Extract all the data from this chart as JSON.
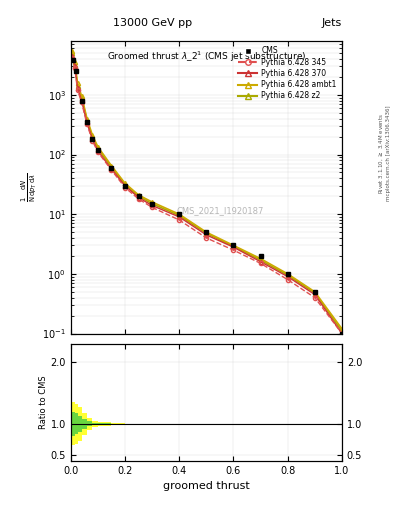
{
  "title": "13000 GeV pp",
  "title_right": "Jets",
  "plot_title": "Groomed thrust $\\lambda\\_2^1$ (CMS jet substructure)",
  "xlabel": "groomed thrust",
  "ylabel": "$\\frac{1}{\\mathrm{d}N}\\frac{\\mathrm{d}N}{\\mathrm{d}p_T\\,\\mathrm{d}\\lambda}$",
  "ylabel_ratio": "Ratio to CMS",
  "watermark": "CMS_2021_I1920187",
  "right_label": "Rivet 3.1.10, $\\geq$ 3.4M events",
  "right_label2": "mcplots.cern.ch [arXiv:1306.3436]",
  "cms_x": [
    0.0,
    0.01,
    0.02,
    0.04,
    0.06,
    0.08,
    0.1,
    0.15,
    0.2,
    0.25,
    0.3,
    0.4,
    0.5,
    0.6,
    0.7,
    0.8,
    0.9,
    1.0
  ],
  "cms_y": [
    0,
    3800,
    2500,
    800,
    350,
    180,
    120,
    60,
    30,
    20,
    15,
    10,
    5,
    3,
    2,
    1,
    0.5,
    0.1
  ],
  "py345_x": [
    0.005,
    0.015,
    0.025,
    0.04,
    0.06,
    0.08,
    0.1,
    0.15,
    0.2,
    0.25,
    0.3,
    0.4,
    0.5,
    0.6,
    0.7,
    0.8,
    0.9,
    1.0
  ],
  "py345_y": [
    4200,
    2800,
    1200,
    750,
    320,
    170,
    110,
    55,
    28,
    18,
    13,
    8,
    4,
    2.5,
    1.5,
    0.8,
    0.4,
    0.1
  ],
  "py370_x": [
    0.005,
    0.015,
    0.025,
    0.04,
    0.06,
    0.08,
    0.1,
    0.15,
    0.2,
    0.25,
    0.3,
    0.4,
    0.5,
    0.6,
    0.7,
    0.8,
    0.9,
    1.0
  ],
  "py370_y": [
    4500,
    3000,
    1300,
    800,
    340,
    180,
    115,
    57,
    30,
    19,
    14,
    9,
    4.5,
    2.8,
    1.6,
    0.9,
    0.45,
    0.1
  ],
  "pyambt1_x": [
    0.005,
    0.015,
    0.025,
    0.04,
    0.06,
    0.08,
    0.1,
    0.15,
    0.2,
    0.25,
    0.3,
    0.4,
    0.5,
    0.6,
    0.7,
    0.8,
    0.9,
    1.0
  ],
  "pyambt1_y": [
    5500,
    3500,
    1600,
    950,
    400,
    210,
    135,
    65,
    33,
    21,
    16,
    10,
    5,
    3,
    1.8,
    1.0,
    0.5,
    0.12
  ],
  "pyz2_x": [
    0.005,
    0.015,
    0.025,
    0.04,
    0.06,
    0.08,
    0.1,
    0.15,
    0.2,
    0.25,
    0.3,
    0.4,
    0.5,
    0.6,
    0.7,
    0.8,
    0.9,
    1.0
  ],
  "pyz2_y": [
    5000,
    3200,
    1400,
    900,
    370,
    195,
    125,
    62,
    31,
    20,
    15,
    9.5,
    4.8,
    2.9,
    1.7,
    0.95,
    0.48,
    0.11
  ],
  "color_cms": "#000000",
  "color_py345": "#e05050",
  "color_py370": "#cc3333",
  "color_pyambt1": "#ccaa00",
  "color_pyz2": "#aaaa00",
  "ratio_yellow_lo": [
    0.65,
    0.68,
    0.72,
    0.82,
    0.9,
    0.95,
    0.97,
    0.99,
    1.0,
    1.0,
    1.0,
    1.0,
    1.0,
    1.0,
    1.0,
    1.0,
    1.0,
    1.0
  ],
  "ratio_yellow_hi": [
    1.35,
    1.32,
    1.28,
    1.18,
    1.1,
    1.05,
    1.03,
    1.01,
    1.0,
    1.0,
    1.0,
    1.0,
    1.0,
    1.0,
    1.0,
    1.0,
    1.0,
    1.0
  ],
  "ratio_green_lo": [
    0.8,
    0.83,
    0.87,
    0.92,
    0.96,
    0.98,
    0.99,
    1.0,
    1.0,
    1.0,
    1.0,
    1.0,
    1.0,
    1.0,
    1.0,
    1.0,
    1.0,
    1.0
  ],
  "ratio_green_hi": [
    1.2,
    1.17,
    1.13,
    1.08,
    1.04,
    1.02,
    1.01,
    1.0,
    1.0,
    1.0,
    1.0,
    1.0,
    1.0,
    1.0,
    1.0,
    1.0,
    1.0,
    1.0
  ],
  "ratio_x": [
    0.005,
    0.015,
    0.025,
    0.04,
    0.06,
    0.08,
    0.1,
    0.15,
    0.2,
    0.25,
    0.3,
    0.4,
    0.5,
    0.6,
    0.7,
    0.8,
    0.9,
    1.0
  ],
  "ylim_main": [
    0.1,
    8000
  ],
  "xlim": [
    0,
    1.0
  ],
  "ylim_ratio": [
    0.4,
    2.3
  ],
  "ratio_yticks": [
    0.5,
    1.0,
    2.0
  ],
  "bg_color": "#ffffff"
}
